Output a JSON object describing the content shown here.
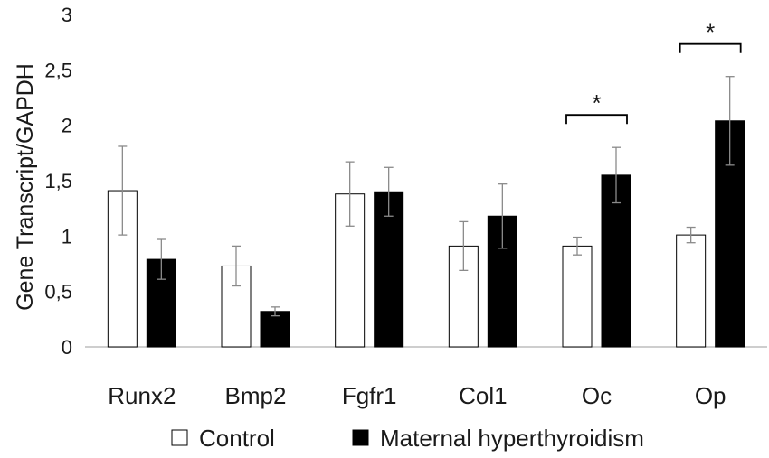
{
  "chart_data": {
    "type": "bar",
    "ylabel": "Gene Transcript/GAPDH",
    "ylim": [
      0,
      3
    ],
    "yticks": [
      0,
      0.5,
      1,
      1.5,
      2,
      2.5,
      3
    ],
    "ytick_labels": [
      "0",
      "0,5",
      "1",
      "1,5",
      "2",
      "2,5",
      "3"
    ],
    "categories": [
      "Runx2",
      "Bmp2",
      "Fgfr1",
      "Col1",
      "Oc",
      "Op"
    ],
    "series": [
      {
        "name": "Control",
        "color": "#ffffff",
        "values": [
          1.41,
          0.73,
          1.38,
          0.91,
          0.91,
          1.01
        ],
        "errors": [
          0.4,
          0.18,
          0.29,
          0.22,
          0.08,
          0.07
        ]
      },
      {
        "name": "Maternal hyperthyroidism",
        "color": "#000000",
        "values": [
          0.79,
          0.32,
          1.4,
          1.18,
          1.55,
          2.04
        ],
        "errors": [
          0.18,
          0.04,
          0.22,
          0.29,
          0.25,
          0.4
        ]
      }
    ],
    "significance": [
      {
        "category": "Oc",
        "label": "*"
      },
      {
        "category": "Op",
        "label": "*"
      }
    ],
    "legend_position": "bottom",
    "grid": false
  }
}
